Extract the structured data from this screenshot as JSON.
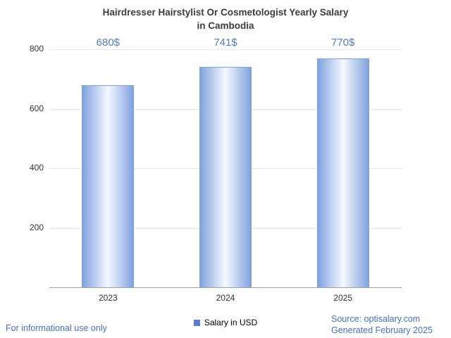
{
  "title": {
    "line1": "Hairdresser Hairstylist Or Cosmetologist Yearly Salary",
    "line2": "in Cambodia",
    "full": "Hairdresser Hairstylist Or Cosmetologist Yearly Salary in Cambodia"
  },
  "chart_data": {
    "type": "bar",
    "categories": [
      "2023",
      "2024",
      "2025"
    ],
    "values": [
      680,
      741,
      770
    ],
    "value_labels": [
      "680$",
      "741$",
      "770$"
    ],
    "series": [
      {
        "name": "Salary in USD",
        "values": [
          680,
          741,
          770
        ]
      }
    ],
    "title": "Hairdresser Hairstylist Or Cosmetologist Yearly Salary in Cambodia",
    "xlabel": "",
    "ylabel": "",
    "ylim": [
      0,
      800
    ],
    "yticks": [
      200,
      400,
      600,
      800
    ],
    "grid": true,
    "legend_position": "bottom"
  },
  "legend": {
    "label": "Salary in USD"
  },
  "footer": {
    "left": "For informational use only",
    "source": "Source: optisalary.com",
    "generated": "Generated February 2025"
  },
  "colors": {
    "title": "#3c3c3c",
    "value_label": "#4e7dc0",
    "footer_text": "#4472c4",
    "bar_edge": "#7da0dc",
    "bar_center": "#f5f9ff",
    "legend_marker": "#5c7fcb",
    "gridline": "#e6e6e6",
    "axis": "#9e9e9e"
  }
}
